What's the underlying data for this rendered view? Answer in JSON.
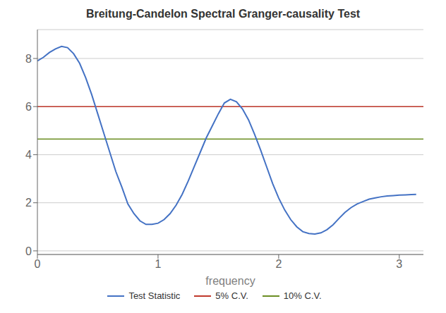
{
  "chart_data": {
    "type": "line",
    "title": "Breitung-Candelon Spectral Granger-causality Test",
    "xlabel": "frequency",
    "xlim": [
      0,
      3.2
    ],
    "ylim": [
      -0.15,
      9.2
    ],
    "xticks": [
      0,
      1,
      2,
      3
    ],
    "yticks": [
      0,
      2,
      4,
      6,
      8
    ],
    "grid": true,
    "legend": "bottom",
    "x": [
      0.0,
      0.05,
      0.1,
      0.15,
      0.2,
      0.25,
      0.3,
      0.35,
      0.4,
      0.45,
      0.5,
      0.55,
      0.6,
      0.65,
      0.7,
      0.75,
      0.8,
      0.85,
      0.9,
      0.95,
      1.0,
      1.05,
      1.1,
      1.15,
      1.2,
      1.25,
      1.3,
      1.35,
      1.4,
      1.45,
      1.5,
      1.55,
      1.6,
      1.65,
      1.7,
      1.75,
      1.8,
      1.85,
      1.9,
      1.95,
      2.0,
      2.05,
      2.1,
      2.15,
      2.2,
      2.25,
      2.3,
      2.35,
      2.4,
      2.45,
      2.5,
      2.55,
      2.6,
      2.65,
      2.7,
      2.75,
      2.8,
      2.85,
      2.9,
      2.95,
      3.0,
      3.05,
      3.1,
      3.14
    ],
    "series": [
      {
        "name": "Test Statistic",
        "color": "#4472c4",
        "values": [
          7.9,
          8.05,
          8.25,
          8.4,
          8.5,
          8.45,
          8.2,
          7.8,
          7.2,
          6.5,
          5.7,
          4.9,
          4.1,
          3.3,
          2.65,
          1.95,
          1.55,
          1.25,
          1.1,
          1.1,
          1.15,
          1.3,
          1.55,
          1.9,
          2.35,
          2.9,
          3.5,
          4.1,
          4.7,
          5.2,
          5.7,
          6.15,
          6.3,
          6.2,
          5.9,
          5.45,
          4.85,
          4.2,
          3.5,
          2.8,
          2.2,
          1.7,
          1.3,
          1.0,
          0.8,
          0.72,
          0.7,
          0.75,
          0.88,
          1.08,
          1.35,
          1.6,
          1.8,
          1.95,
          2.05,
          2.15,
          2.2,
          2.25,
          2.28,
          2.3,
          2.32,
          2.33,
          2.34,
          2.35
        ]
      }
    ],
    "hlines": [
      {
        "name": "5% C.V.",
        "color": "#c0392b",
        "value": 6.0
      },
      {
        "name": "10% C.V.",
        "color": "#6b8e23",
        "value": 4.65
      }
    ]
  }
}
